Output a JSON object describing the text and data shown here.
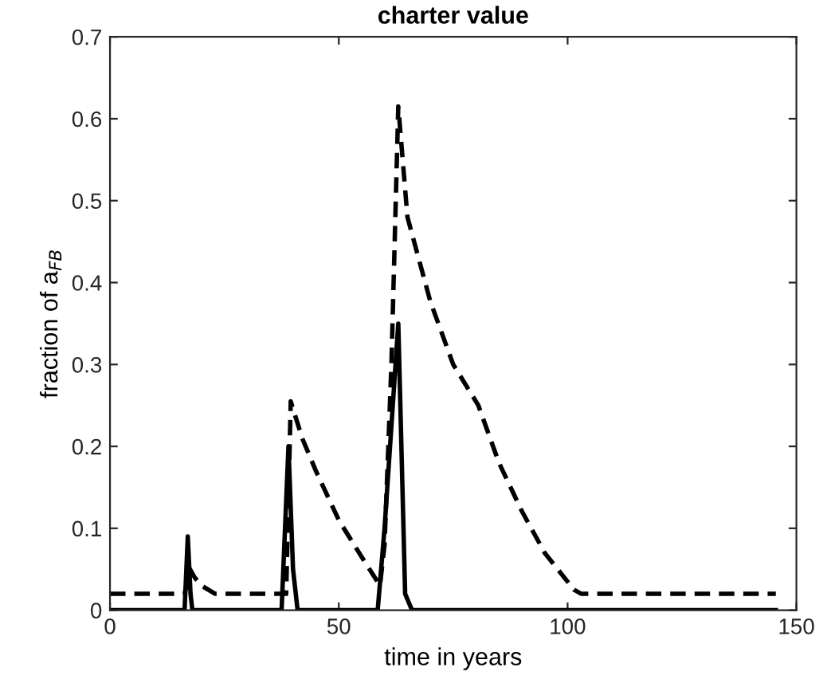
{
  "chart_data": {
    "type": "line",
    "title": "charter value",
    "xlabel": "time in years",
    "ylabel": "fraction of a$_{FB}$",
    "xlim": [
      0,
      150
    ],
    "ylim": [
      0,
      0.7
    ],
    "xticks": [
      0,
      50,
      100,
      150
    ],
    "yticks": [
      0,
      0.1,
      0.2,
      0.3,
      0.4,
      0.5,
      0.6,
      0.7
    ],
    "grid": false,
    "legend": false,
    "marker": "none",
    "series": [
      {
        "color": "#000000",
        "line_style": "solid",
        "x": [
          0,
          16.3,
          17,
          17.6,
          18,
          37.5,
          39,
          40,
          41,
          58.5,
          60,
          63,
          64.5,
          66,
          145.5
        ],
        "values": [
          0,
          0,
          0.09,
          0.02,
          0,
          0,
          0.2,
          0.05,
          0,
          0,
          0.1,
          0.35,
          0.02,
          0,
          0
        ]
      },
      {
        "color": "#000000",
        "line_style": "dashed",
        "x": [
          0,
          16.3,
          17.5,
          18.5,
          20,
          23,
          38.5,
          39.5,
          42,
          45,
          50,
          55,
          59,
          60,
          61.5,
          63,
          65,
          70,
          75,
          80.5,
          85,
          90,
          95,
          101.4,
          103,
          145.5
        ],
        "values": [
          0.02,
          0.02,
          0.05,
          0.04,
          0.03,
          0.02,
          0.02,
          0.255,
          0.21,
          0.17,
          0.11,
          0.065,
          0.03,
          0.08,
          0.3,
          0.615,
          0.48,
          0.377,
          0.3,
          0.25,
          0.18,
          0.121,
          0.07,
          0.025,
          0.02,
          0.02
        ]
      }
    ]
  }
}
